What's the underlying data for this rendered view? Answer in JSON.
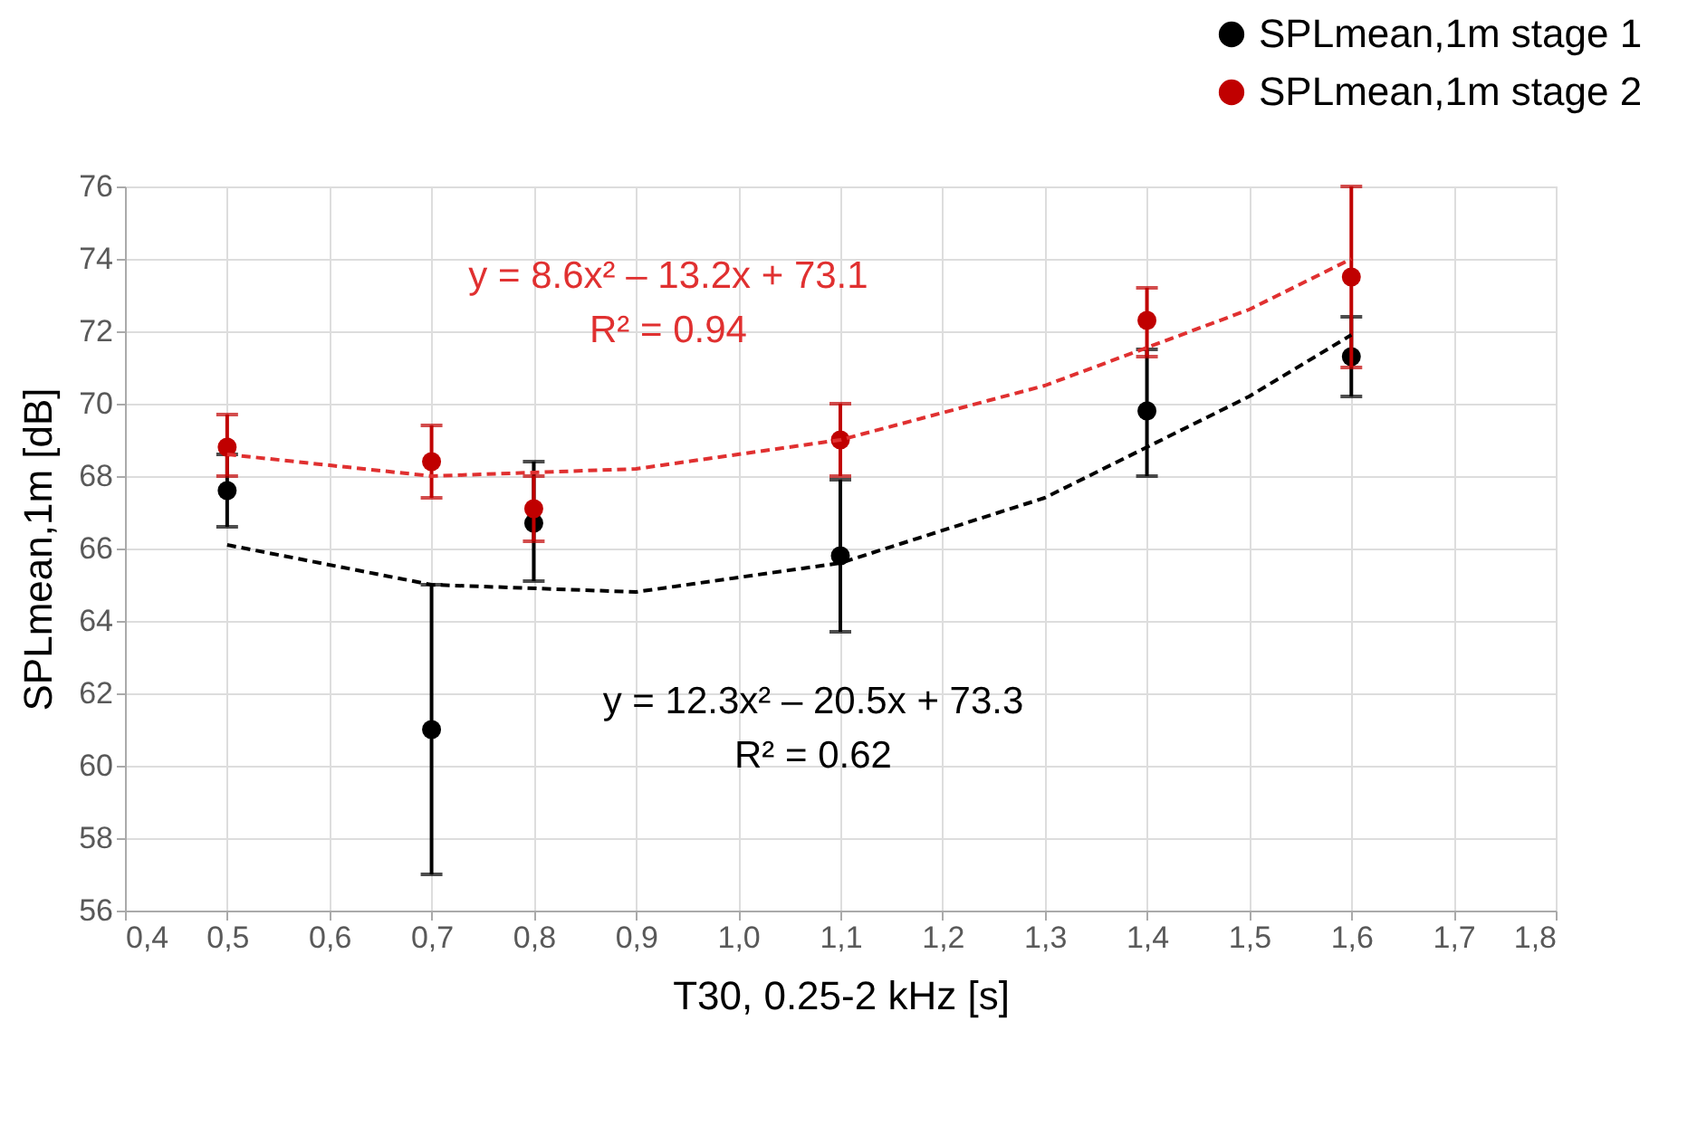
{
  "chart_data": {
    "type": "scatter",
    "xlabel": "T30, 0.25-2 kHz [s]",
    "ylabel": "SPLmean,1m [dB]",
    "x": [
      0.5,
      0.7,
      0.8,
      1.1,
      1.4,
      1.6
    ],
    "series": [
      {
        "name": "SPLmean,1m stage 1",
        "color": "#000000",
        "marker": "circle",
        "values": [
          67.6,
          61.0,
          66.7,
          65.8,
          69.8,
          71.3
        ],
        "errors": [
          1.0,
          4.0,
          [
            65.1,
            68.4
          ],
          2.1,
          [
            68.0,
            71.5
          ],
          1.1
        ]
      },
      {
        "name": "SPLmean,1m stage 2",
        "color": "#c00000",
        "marker": "circle",
        "values": [
          68.8,
          68.4,
          67.1,
          69.0,
          72.3,
          73.5
        ],
        "errors": [
          [
            68.0,
            69.7
          ],
          1.0,
          0.9,
          1.0,
          [
            71.3,
            73.2
          ],
          2.5
        ]
      },
      {
        "type": "line",
        "color": "#000000",
        "line_style": "dashed",
        "marker": "none",
        "x": [
          0.5,
          0.7,
          0.9,
          1.1,
          1.3,
          1.5,
          1.6
        ],
        "values": [
          66.1,
          65.0,
          64.8,
          65.6,
          67.4,
          70.2,
          71.9
        ]
      },
      {
        "type": "line",
        "color": "#e03030",
        "line_style": "dashed",
        "marker": "none",
        "x": [
          0.5,
          0.7,
          0.9,
          1.1,
          1.3,
          1.5,
          1.6
        ],
        "values": [
          68.6,
          68.0,
          68.2,
          69.0,
          70.5,
          72.6,
          74.0
        ]
      }
    ],
    "annotations": [
      "y = 8.6x² – 13.2x + 73.1",
      "R² = 0.94",
      "y = 12.3x² – 20.5x + 73.3",
      "R² = 0.62"
    ],
    "xlim": [
      0.4,
      1.8
    ],
    "xticks": [
      {
        "value": 0.4,
        "label": "0,4"
      },
      {
        "value": 0.5,
        "label": "0,5"
      },
      {
        "value": 0.6,
        "label": "0,6"
      },
      {
        "value": 0.7,
        "label": "0,7"
      },
      {
        "value": 0.8,
        "label": "0,8"
      },
      {
        "value": 0.9,
        "label": "0,9"
      },
      {
        "value": 1.0,
        "label": "1,0"
      },
      {
        "value": 1.1,
        "label": "1,1"
      },
      {
        "value": 1.2,
        "label": "1,2"
      },
      {
        "value": 1.3,
        "label": "1,3"
      },
      {
        "value": 1.4,
        "label": "1,4"
      },
      {
        "value": 1.5,
        "label": "1,5"
      },
      {
        "value": 1.6,
        "label": "1,6"
      },
      {
        "value": 1.7,
        "label": "1,7"
      },
      {
        "value": 1.8,
        "label": "1,8"
      }
    ],
    "ylim": [
      56,
      76
    ],
    "yticks": [
      56,
      58,
      60,
      62,
      64,
      66,
      68,
      70,
      72,
      74,
      76
    ],
    "grid": true,
    "legend": "top right"
  }
}
